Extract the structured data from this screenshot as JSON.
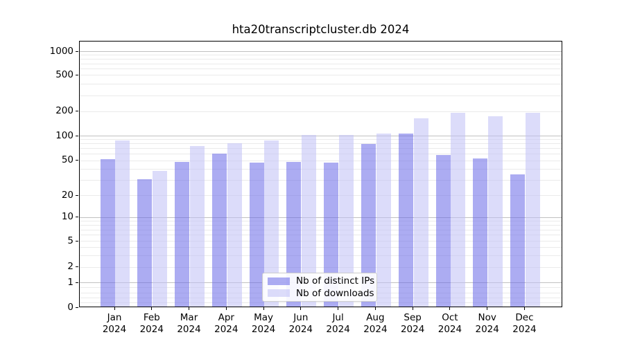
{
  "chart": {
    "colors": {
      "background": "#ffffff",
      "ips_bar": "rgba(104,104,231,0.55)",
      "downloads_bar": "rgba(192,192,246,0.55)",
      "grid_major": "#c0c0c0",
      "grid_minor": "#eaeaea",
      "spine": "#000000",
      "text": "#000000",
      "legend_border": "#cccccc"
    },
    "legend": {
      "items": [
        {
          "label": "Nb of distinct IPs",
          "color_key": "ips_bar"
        },
        {
          "label": "Nb of downloads",
          "color_key": "downloads_bar"
        }
      ]
    }
  },
  "chart_data": {
    "type": "bar",
    "title": "hta20transcriptcluster.db 2024",
    "categories": [
      "Jan 2024",
      "Feb 2024",
      "Mar 2024",
      "Apr 2024",
      "May 2024",
      "Jun 2024",
      "Jul 2024",
      "Aug 2024",
      "Sep 2024",
      "Oct 2024",
      "Nov 2024",
      "Dec 2024"
    ],
    "series": [
      {
        "name": "Nb of distinct IPs",
        "values": [
          51,
          30,
          47,
          59,
          46,
          47,
          46,
          78,
          105,
          57,
          52,
          34
        ]
      },
      {
        "name": "Nb of downloads",
        "values": [
          85,
          37,
          74,
          79,
          86,
          101,
          101,
          105,
          159,
          187,
          170,
          187
        ]
      }
    ],
    "xlabel": "",
    "ylabel": "",
    "yscale": "symlog",
    "ylim": [
      0,
      1300
    ],
    "ytick_values": [
      0,
      1,
      2,
      5,
      10,
      20,
      50,
      100,
      200,
      500,
      1000
    ],
    "ytick_labels": [
      "0",
      "1",
      "2",
      "5",
      "10",
      "20",
      "50",
      "100",
      "200",
      "500",
      "1000"
    ],
    "grid": true,
    "legend_position": "lower center"
  }
}
